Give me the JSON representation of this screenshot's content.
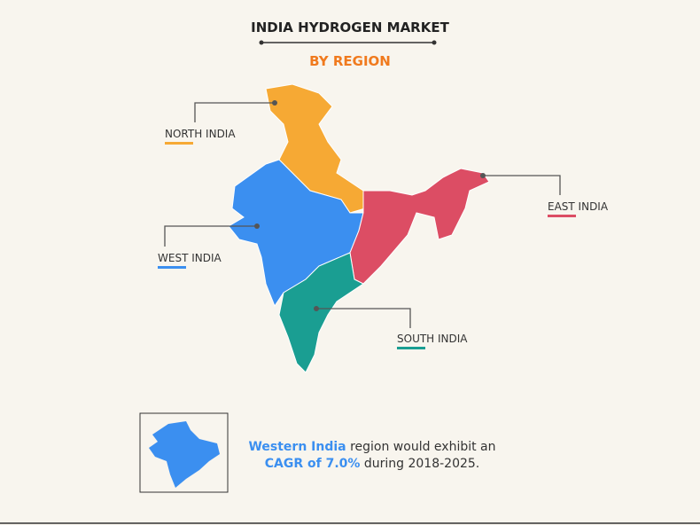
{
  "header": {
    "title": "INDIA HYDROGEN MARKET",
    "subtitle": "BY REGION"
  },
  "regions": [
    {
      "label": "NORTH INDIA",
      "color": "#f6a934"
    },
    {
      "label": "WEST INDIA",
      "color": "#3b8ff0"
    },
    {
      "label": "EAST INDIA",
      "color": "#dc4d64"
    },
    {
      "label": "SOUTH INDIA",
      "color": "#1a9e92"
    }
  ],
  "callout": {
    "highlight1": "Western India",
    "text1": "region would exhibit an",
    "highlight2": "CAGR of 7.0%",
    "text2": "during 2018-2025."
  }
}
